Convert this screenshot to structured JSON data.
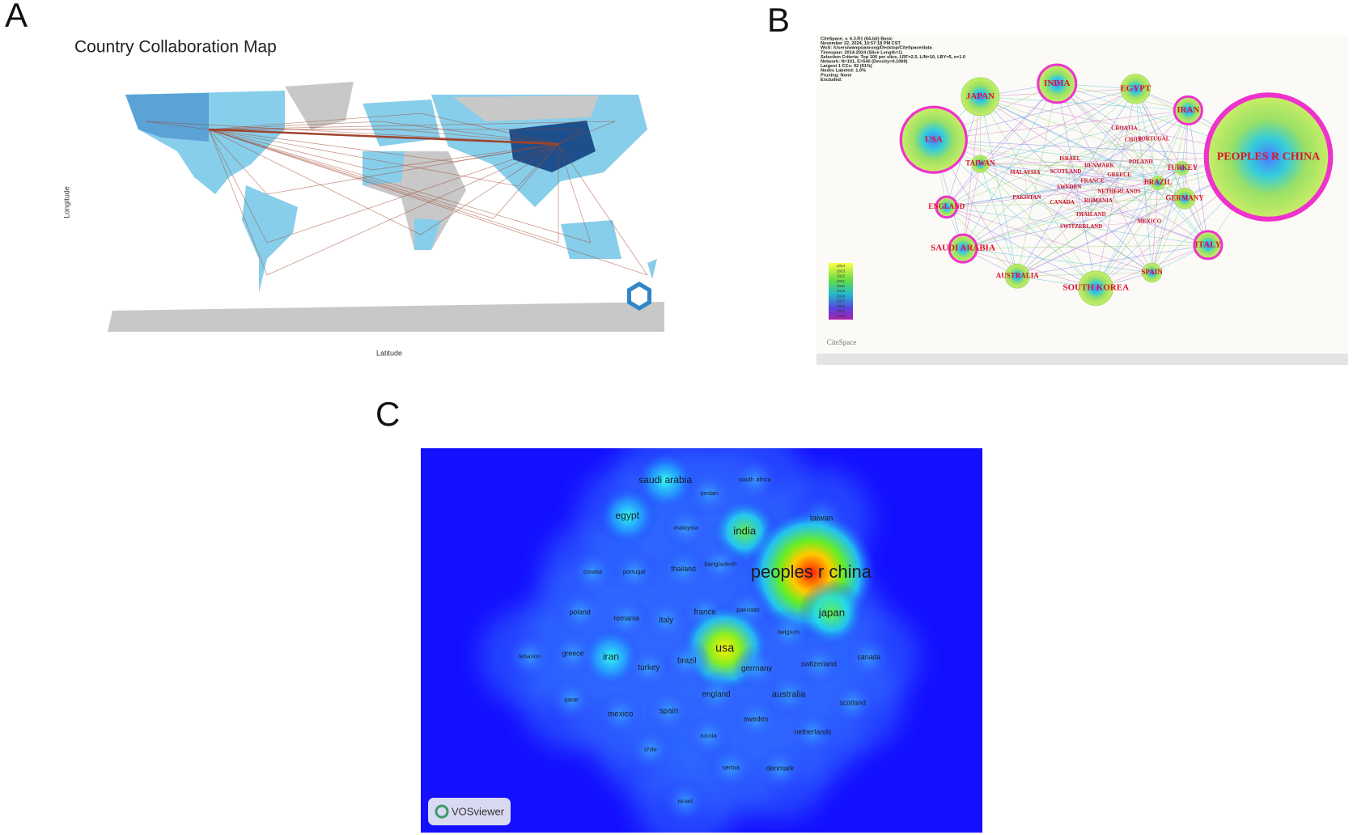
{
  "panel_a": {
    "label": "A",
    "title": "Country Collaboration Map",
    "y_axis_label": "Longitude",
    "x_axis_label": "Latitude"
  },
  "panel_b": {
    "label": "B",
    "header_lines": [
      "CiteSpace, v. 6.3.R1 (64-bit) Basic",
      "November 22, 2024, 10:57:18 PM CST",
      "WoS: /Users/wangsianrong/Desktop/CiteSpace/data",
      "Timespan: 2014-2024 (Slice Length=1)",
      "Selection Criteria: Top 100 per slice, LRF=2.5, L/N=10, LBY=5, e=1.0",
      "Network: N=101, E=540 (Density=0.1069)",
      "Largest 1 CCs: 92 (91%)",
      "Nodes Labeled: 1.0%",
      "Pruning: None",
      "Excluded:"
    ],
    "nodes": [
      "PEOPLES R CHINA",
      "USA",
      "JAPAN",
      "INDIA",
      "EGYPT",
      "IRAN",
      "TAIWAN",
      "ENGLAND",
      "SAUDI ARABIA",
      "AUSTRALIA",
      "SOUTH KOREA",
      "SPAIN",
      "ITALY",
      "GERMANY",
      "TURKEY",
      "BRAZIL"
    ],
    "small_labels": [
      "MALAYSIA",
      "SCOTLAND",
      "ISRAEL",
      "DENMARK",
      "POLAND",
      "GREECE",
      "FRANCE",
      "SWEDEN",
      "NETHERLANDS",
      "PAKISTAN",
      "CANADA",
      "ROMANIA",
      "THAILAND",
      "SWITZERLAND",
      "MEXICO",
      "CHILE",
      "PORTUGAL",
      "CROATIA"
    ],
    "legend_years": [
      "2024",
      "2023",
      "2022",
      "2021",
      "2020",
      "2019",
      "2018",
      "2017",
      "2016",
      "2015",
      "2014"
    ],
    "logo": "CiteSpace"
  },
  "panel_c": {
    "label": "C",
    "terms": [
      "saudi arabia",
      "south africa",
      "jordan",
      "egypt",
      "malaysia",
      "india",
      "taiwan",
      "bangladesh",
      "croatia",
      "portugal",
      "thailand",
      "peoples r china",
      "poland",
      "romania",
      "italy",
      "france",
      "pakistan",
      "japan",
      "belgium",
      "lebanon",
      "greece",
      "iran",
      "usa",
      "turkey",
      "brazil",
      "germany",
      "switzerland",
      "canada",
      "qatar",
      "england",
      "australia",
      "scotland",
      "mexico",
      "spain",
      "sweden",
      "russia",
      "netherlands",
      "chile",
      "serbia",
      "denmark",
      "israel"
    ],
    "logo": "VOSviewer"
  }
}
